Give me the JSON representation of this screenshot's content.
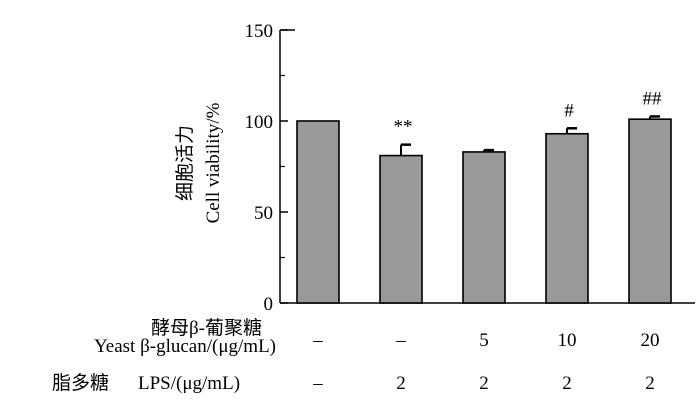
{
  "chart_data": {
    "type": "bar",
    "ylabel_cn": "细胞活力",
    "ylabel_en": "Cell viability/%",
    "ylim": [
      0,
      150
    ],
    "yticks": [
      "0",
      "50",
      "100",
      "150"
    ],
    "grid": false,
    "bar_color": "#999999",
    "values": [
      100,
      81,
      83,
      93,
      101
    ],
    "errors": [
      0,
      6,
      1,
      3,
      1.5
    ],
    "annotations": [
      "",
      "**",
      "",
      "#",
      "##"
    ],
    "rows": [
      {
        "label_cn": "酵母β-葡聚糖",
        "label_en": "Yeast β-glucan/(μg/mL)",
        "values": [
          "–",
          "–",
          "5",
          "10",
          "20"
        ]
      },
      {
        "label_cn": "脂多糖",
        "label_en": "LPS/(μg/mL)",
        "values": [
          "–",
          "2",
          "2",
          "2",
          "2"
        ]
      }
    ]
  }
}
